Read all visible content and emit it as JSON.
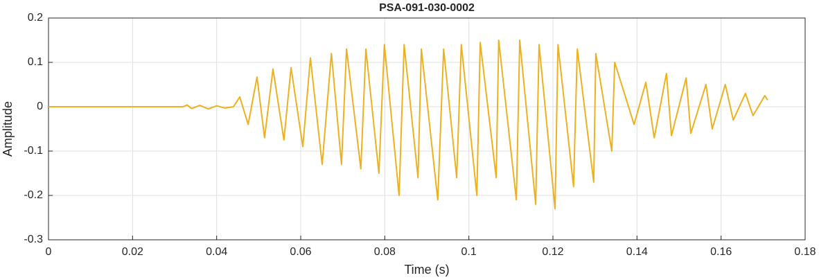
{
  "chart_data": {
    "type": "line",
    "title": "PSA-091-030-0002",
    "x_label": "Time (s)",
    "y_label": "Amplitude",
    "xlim": [
      0,
      0.18
    ],
    "xticks": [
      0,
      0.02,
      0.04,
      0.06,
      0.08,
      0.1,
      0.12,
      0.14,
      0.16,
      0.18
    ],
    "ylim": [
      -0.3,
      0.2
    ],
    "yticks": [
      -0.3,
      -0.2,
      -0.1,
      0,
      0.1,
      0.2
    ],
    "grid": true,
    "series": [
      {
        "color": "#EDB120",
        "x": [
          0,
          0.01,
          0.02,
          0.032,
          0.033,
          0.034,
          0.036,
          0.038,
          0.04,
          0.042,
          0.044,
          0.0455,
          0.0475,
          0.0496,
          0.0514,
          0.0534,
          0.056,
          0.0577,
          0.0605,
          0.0623,
          0.0651,
          0.0673,
          0.0697,
          0.0709,
          0.0743,
          0.0755,
          0.0786,
          0.0799,
          0.0834,
          0.0846,
          0.0879,
          0.0887,
          0.0926,
          0.094,
          0.0971,
          0.0982,
          0.1019,
          0.1027,
          0.1065,
          0.1071,
          0.1113,
          0.1121,
          0.1159,
          0.1167,
          0.1205,
          0.1212,
          0.1249,
          0.1258,
          0.1297,
          0.1302,
          0.134,
          0.1347,
          0.1393,
          0.1421,
          0.1441,
          0.147,
          0.1482,
          0.1517,
          0.1528,
          0.1564,
          0.1579,
          0.161,
          0.1629,
          0.1658,
          0.1676,
          0.1704,
          0.1711
        ],
        "values": [
          0,
          0,
          0,
          0,
          0.004,
          -0.004,
          0.003,
          -0.005,
          0.002,
          -0.003,
          0,
          0.022,
          -0.04,
          0.067,
          -0.07,
          0.085,
          -0.075,
          0.088,
          -0.09,
          0.11,
          -0.13,
          0.12,
          -0.13,
          0.13,
          -0.14,
          0.13,
          -0.15,
          0.14,
          -0.2,
          0.14,
          -0.16,
          0.13,
          -0.21,
          0.13,
          -0.16,
          0.14,
          -0.2,
          0.145,
          -0.16,
          0.15,
          -0.21,
          0.15,
          -0.22,
          0.14,
          -0.23,
          0.14,
          -0.18,
          0.13,
          -0.17,
          0.12,
          -0.1,
          0.1,
          -0.04,
          0.055,
          -0.07,
          0.075,
          -0.065,
          0.065,
          -0.06,
          0.05,
          -0.05,
          0.05,
          -0.03,
          0.03,
          -0.02,
          0.025,
          0.015
        ]
      }
    ]
  }
}
